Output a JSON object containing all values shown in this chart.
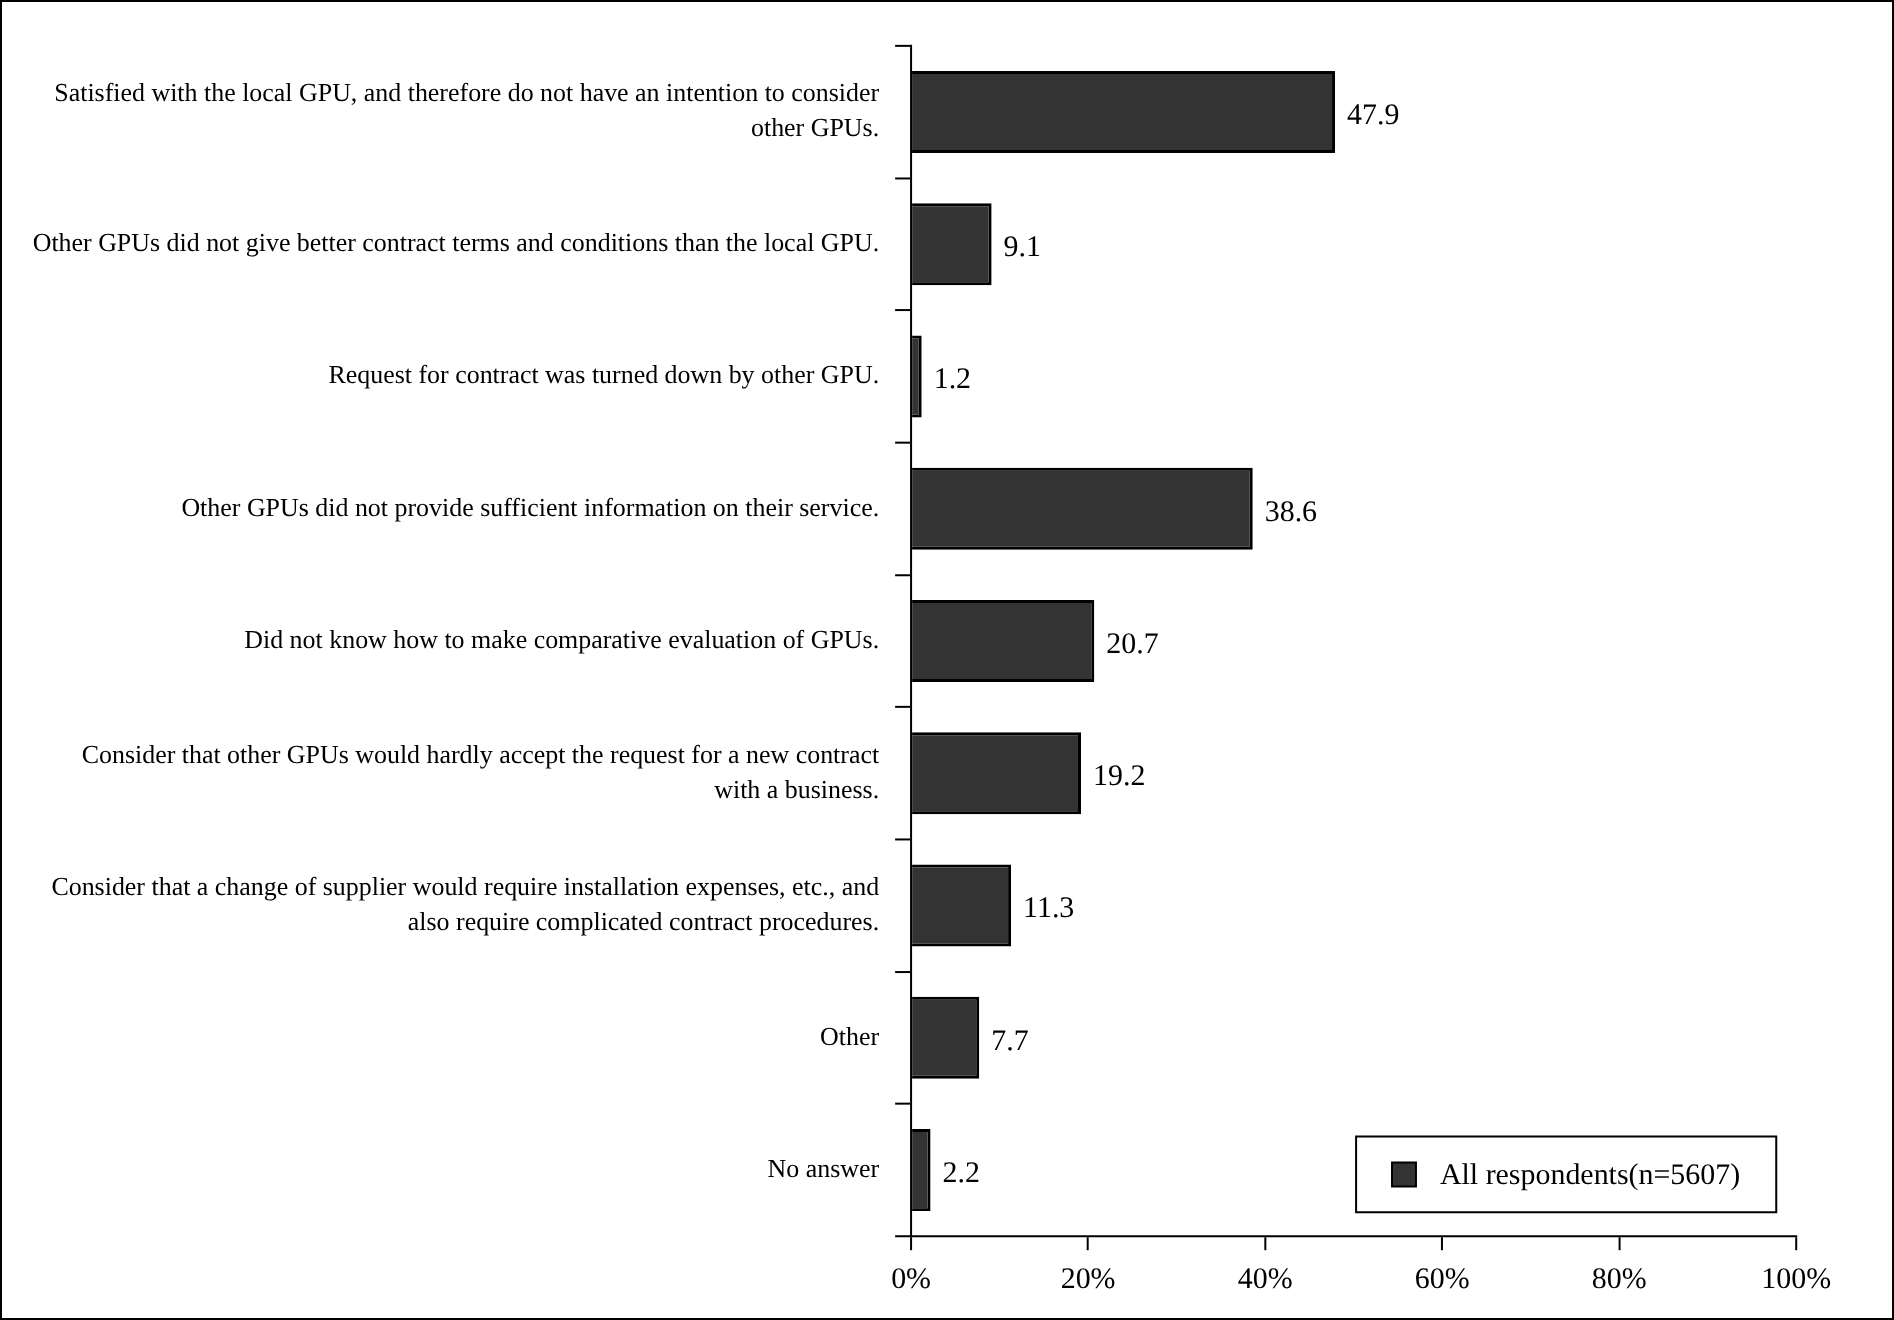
{
  "chart_data": {
    "type": "bar",
    "orientation": "horizontal",
    "categories": [
      "Satisfied with the local GPU, and therefore do not have an intention to consider other GPUs.",
      "Other GPUs did not give better contract terms and conditions than the local GPU.",
      "Request for contract was turned down by other GPU.",
      "Other GPUs did not provide sufficient information on their service.",
      "Did not know how to make comparative evaluation of GPUs.",
      "Consider that other GPUs would hardly accept the request for a new contract with a business.",
      "Consider that a change of supplier would require installation expenses, etc., and also require complicated contract procedures.",
      "Other",
      "No answer"
    ],
    "series": [
      {
        "name": "All respondents(n=5607)",
        "color": "#333333",
        "values": [
          47.9,
          9.1,
          1.2,
          38.6,
          20.7,
          19.2,
          11.3,
          7.7,
          2.2
        ]
      }
    ],
    "xlim": [
      0,
      100
    ],
    "xticks": [
      {
        "value": 0,
        "label": "0%"
      },
      {
        "value": 20,
        "label": "20%"
      },
      {
        "value": 40,
        "label": "40%"
      },
      {
        "value": 60,
        "label": "60%"
      },
      {
        "value": 80,
        "label": "80%"
      },
      {
        "value": 100,
        "label": "100%"
      }
    ],
    "data_labels": true,
    "grid": false,
    "legend": "bottom right"
  }
}
